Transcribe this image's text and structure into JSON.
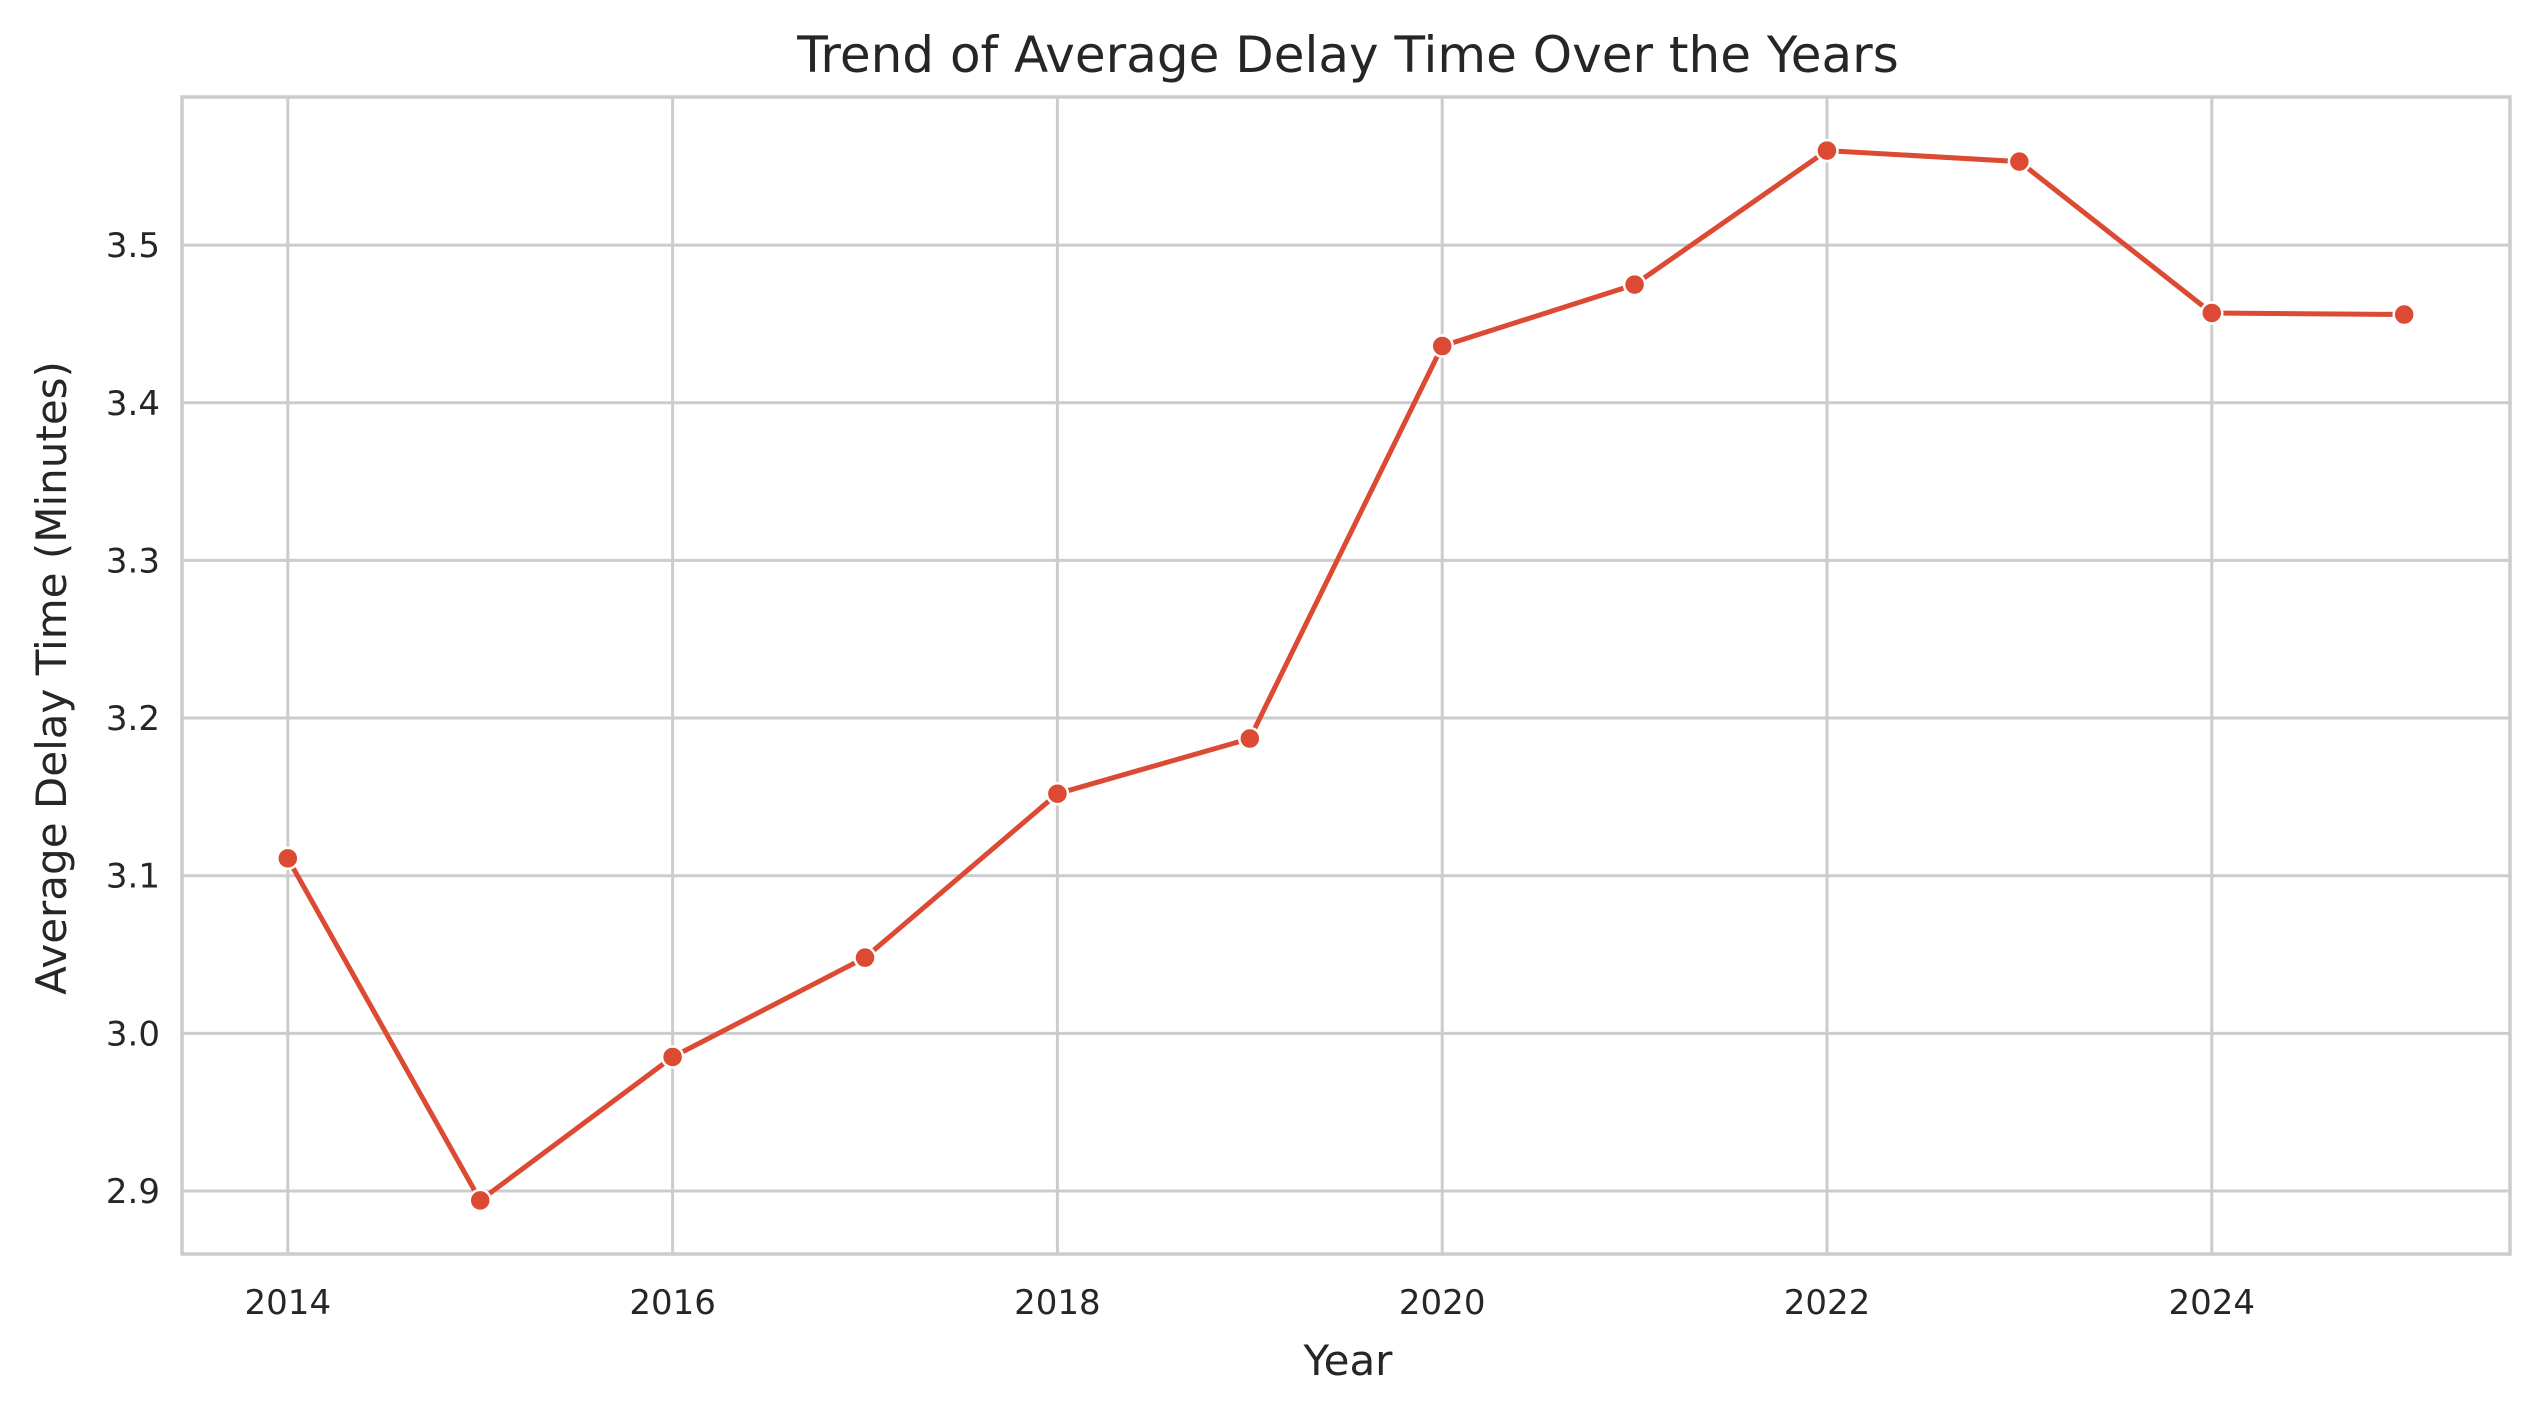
{
  "chart_data": {
    "type": "line",
    "title": "Trend of Average Delay Time Over the Years",
    "xlabel": "Year",
    "ylabel": "Average Delay Time (Minutes)",
    "x": [
      2014,
      2015,
      2016,
      2017,
      2018,
      2019,
      2020,
      2021,
      2022,
      2023,
      2024,
      2025
    ],
    "series": [
      {
        "values": [
          3.111,
          2.894,
          2.985,
          3.048,
          3.152,
          3.187,
          3.436,
          3.475,
          3.56,
          3.553,
          3.457,
          3.456
        ],
        "color": "#dc4a34",
        "marker": "circle"
      }
    ],
    "xticks": [
      "2014",
      "2016",
      "2018",
      "2020",
      "2022",
      "2024"
    ],
    "yticks": [
      "2.9",
      "3.0",
      "3.1",
      "3.2",
      "3.3",
      "3.4",
      "3.5"
    ],
    "xlim": [
      2013.45,
      2025.55
    ],
    "ylim": [
      2.86,
      3.594
    ],
    "grid": true,
    "legend": "none"
  }
}
